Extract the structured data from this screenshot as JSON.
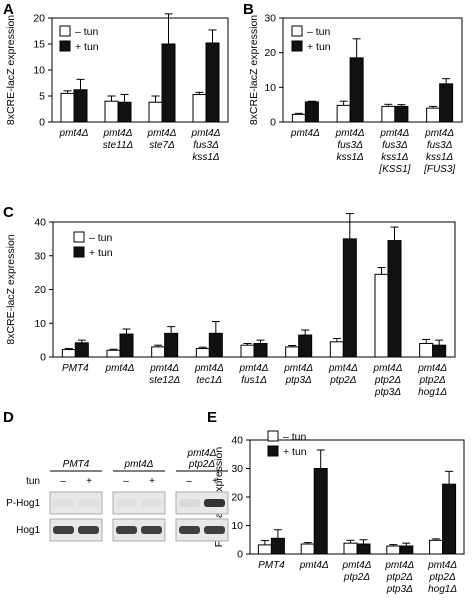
{
  "panels": [
    {
      "letter": "A"
    },
    {
      "letter": "B"
    },
    {
      "letter": "C"
    },
    {
      "letter": "D"
    },
    {
      "letter": "E"
    }
  ],
  "legend": {
    "minus": "– tun",
    "plus": "+ tun"
  },
  "colors": {
    "minus_fill": "#ffffff",
    "plus_fill": "#111111",
    "stroke": "#000000"
  },
  "chart_data": [
    {
      "panel": "A",
      "type": "bar",
      "ylabel": "8xCRE-lacZ expression",
      "ylim": [
        0,
        20
      ],
      "yticks": [
        0,
        5,
        10,
        15,
        20
      ],
      "categories": [
        [
          "pmt4Δ"
        ],
        [
          "pmt4Δ",
          "ste11Δ"
        ],
        [
          "pmt4Δ",
          "ste7Δ"
        ],
        [
          "pmt4Δ",
          "fus3Δ",
          "kss1Δ"
        ]
      ],
      "series": [
        {
          "name": "– tun",
          "values": [
            5.5,
            4.0,
            3.8,
            5.3
          ],
          "errors": [
            0.5,
            1.0,
            1.2,
            0.4
          ]
        },
        {
          "name": "+ tun",
          "values": [
            6.2,
            3.8,
            15.0,
            15.2
          ],
          "errors": [
            2.0,
            1.5,
            5.8,
            2.5
          ]
        }
      ]
    },
    {
      "panel": "B",
      "type": "bar",
      "ylabel": "8xCRE-lacZ expression",
      "ylim": [
        0,
        30
      ],
      "yticks": [
        0,
        10,
        20,
        30
      ],
      "categories": [
        [
          "pmt4Δ"
        ],
        [
          "pmt4Δ",
          "fus3Δ",
          "kss1Δ"
        ],
        [
          "pmt4Δ",
          "fus3Δ",
          "kss1Δ",
          "[KSS1]"
        ],
        [
          "pmt4Δ",
          "fus3Δ",
          "kss1Δ",
          "[FUS3]"
        ]
      ],
      "series": [
        {
          "name": "– tun",
          "values": [
            2.2,
            4.8,
            4.5,
            4.0
          ],
          "errors": [
            0.3,
            1.2,
            0.6,
            0.5
          ]
        },
        {
          "name": "+ tun",
          "values": [
            5.8,
            18.5,
            4.5,
            11.0
          ],
          "errors": [
            0.2,
            5.5,
            0.5,
            1.5
          ]
        }
      ]
    },
    {
      "panel": "C",
      "type": "bar",
      "ylabel": "8xCRE-lacZ expression",
      "ylim": [
        0,
        40
      ],
      "yticks": [
        0,
        10,
        20,
        30,
        40
      ],
      "categories": [
        [
          "PMT4"
        ],
        [
          "pmt4Δ"
        ],
        [
          "pmt4Δ",
          "ste12Δ"
        ],
        [
          "pmt4Δ",
          "tec1Δ"
        ],
        [
          "pmt4Δ",
          "fus1Δ"
        ],
        [
          "pmt4Δ",
          "ptp3Δ"
        ],
        [
          "pmt4Δ",
          "ptp2Δ"
        ],
        [
          "pmt4Δ",
          "ptp2Δ",
          "ptp3Δ"
        ],
        [
          "pmt4Δ",
          "ptp2Δ",
          "hog1Δ"
        ]
      ],
      "series": [
        {
          "name": "– tun",
          "values": [
            2.2,
            2.0,
            3.0,
            2.5,
            3.5,
            3.0,
            4.5,
            24.5,
            4.0
          ],
          "errors": [
            0.3,
            0.3,
            0.5,
            0.4,
            0.5,
            0.4,
            1.0,
            2.0,
            1.2
          ]
        },
        {
          "name": "+ tun",
          "values": [
            4.2,
            6.8,
            7.0,
            7.0,
            4.0,
            6.5,
            35.0,
            34.5,
            3.5
          ],
          "errors": [
            0.8,
            1.5,
            2.0,
            3.5,
            1.0,
            1.5,
            7.5,
            4.0,
            1.5
          ]
        }
      ]
    },
    {
      "panel": "E",
      "type": "bar",
      "ylabel": "Fus1-lacZ expression",
      "ylim": [
        0,
        40
      ],
      "yticks": [
        0,
        10,
        20,
        30,
        40
      ],
      "categories": [
        [
          "PMT4"
        ],
        [
          "pmt4Δ"
        ],
        [
          "pmt4Δ",
          "ptp2Δ"
        ],
        [
          "pmt4Δ",
          "ptp2Δ",
          "ptp3Δ"
        ],
        [
          "pmt4Δ",
          "ptp2Δ",
          "hog1Δ"
        ]
      ],
      "series": [
        {
          "name": "– tun",
          "values": [
            3.2,
            3.5,
            3.8,
            2.8,
            4.8
          ],
          "errors": [
            1.5,
            0.5,
            1.0,
            0.5,
            0.5
          ]
        },
        {
          "name": "+ tun",
          "values": [
            5.5,
            30.0,
            3.5,
            2.8,
            24.5
          ],
          "errors": [
            3.0,
            6.5,
            1.5,
            1.0,
            4.5
          ]
        }
      ]
    }
  ],
  "blot": {
    "groups": [
      [
        "PMT4"
      ],
      [
        "pmt4Δ"
      ],
      [
        "pmt4Δ",
        "ptp2Δ"
      ]
    ],
    "tun_label": "tun",
    "lane_signs": [
      "–",
      "+"
    ],
    "rows": [
      {
        "label": "P-Hog1",
        "intensities": [
          0.05,
          0.05,
          0.05,
          0.05,
          0.08,
          0.85
        ]
      },
      {
        "label": "Hog1",
        "intensities": [
          0.8,
          0.8,
          0.8,
          0.8,
          0.8,
          0.8
        ]
      }
    ]
  }
}
